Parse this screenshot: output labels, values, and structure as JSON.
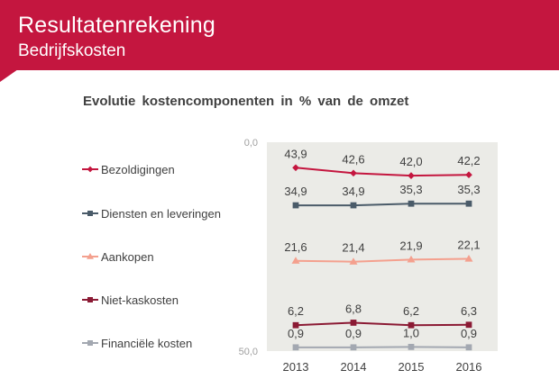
{
  "header": {
    "title": "Resultatenrekening",
    "subtitle": "Bedrijfskosten"
  },
  "colors": {
    "brand": "#c4163f",
    "plot_background": "#ebebe7"
  },
  "chart_data": {
    "type": "line",
    "title": "Evolutie  kostencomponenten in % van de omzet",
    "x": [
      "2013",
      "2014",
      "2015",
      "2016"
    ],
    "ylim": [
      0,
      50
    ],
    "y_ticks": [
      "0,0",
      "50,0"
    ],
    "grid": false,
    "legend_position": "left",
    "series": [
      {
        "name": "Bezoldigingen",
        "values": [
          43.9,
          42.6,
          42.0,
          42.2
        ],
        "labels": [
          "43,9",
          "42,6",
          "42,0",
          "42,2"
        ],
        "color": "#c4163f",
        "marker": "diamond"
      },
      {
        "name": "Diensten en leveringen",
        "values": [
          34.9,
          34.9,
          35.3,
          35.3
        ],
        "labels": [
          "34,9",
          "34,9",
          "35,3",
          "35,3"
        ],
        "color": "#4a5b69",
        "marker": "square"
      },
      {
        "name": "Aankopen",
        "values": [
          21.6,
          21.4,
          21.9,
          22.1
        ],
        "labels": [
          "21,6",
          "21,4",
          "21,9",
          "22,1"
        ],
        "color": "#f4a08e",
        "marker": "triangle"
      },
      {
        "name": "Niet-kaskosten",
        "values": [
          6.2,
          6.8,
          6.2,
          6.3
        ],
        "labels": [
          "6,2",
          "6,8",
          "6,2",
          "6,3"
        ],
        "color": "#8b1a34",
        "marker": "square"
      },
      {
        "name": "Financiële kosten",
        "values": [
          0.9,
          0.9,
          1.0,
          0.9
        ],
        "labels": [
          "0,9",
          "0,9",
          "1,0",
          "0,9"
        ],
        "color": "#a3a8b1",
        "marker": "square"
      }
    ]
  }
}
